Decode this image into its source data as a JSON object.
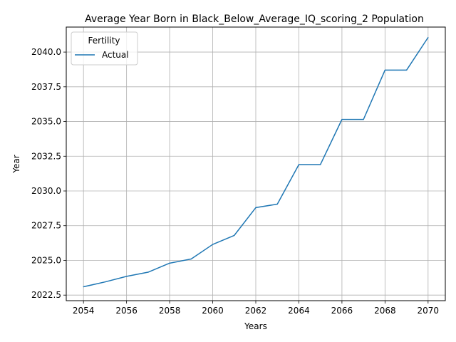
{
  "chart_data": {
    "type": "line",
    "title": "Average Year Born in Black_Below_Average_IQ_scoring_2 Population",
    "xlabel": "Years",
    "ylabel": "Year",
    "xlim": [
      2053.2,
      2070.8
    ],
    "ylim": [
      2022.1,
      2041.8
    ],
    "xticks": [
      2054,
      2056,
      2058,
      2060,
      2062,
      2064,
      2066,
      2068,
      2070
    ],
    "xtick_labels": [
      "2054",
      "2056",
      "2058",
      "2060",
      "2062",
      "2064",
      "2066",
      "2068",
      "2070"
    ],
    "yticks": [
      2022.5,
      2025.0,
      2027.5,
      2030.0,
      2032.5,
      2035.0,
      2037.5,
      2040.0
    ],
    "ytick_labels": [
      "2022.5",
      "2025.0",
      "2027.5",
      "2030.0",
      "2032.5",
      "2035.0",
      "2037.5",
      "2040.0"
    ],
    "grid": true,
    "legend": {
      "title": "Fertility",
      "placement": "top-left"
    },
    "series": [
      {
        "name": "Actual",
        "color": "#1f77b4",
        "x": [
          2054,
          2055,
          2056,
          2057,
          2058,
          2059,
          2060,
          2061,
          2062,
          2063,
          2064,
          2065,
          2066,
          2067,
          2068,
          2069,
          2070
        ],
        "y": [
          2023.1,
          2023.45,
          2023.85,
          2024.15,
          2024.8,
          2025.1,
          2026.15,
          2026.8,
          2028.8,
          2029.05,
          2031.9,
          2031.9,
          2035.15,
          2035.15,
          2038.7,
          2038.7,
          2041.05
        ]
      }
    ]
  }
}
